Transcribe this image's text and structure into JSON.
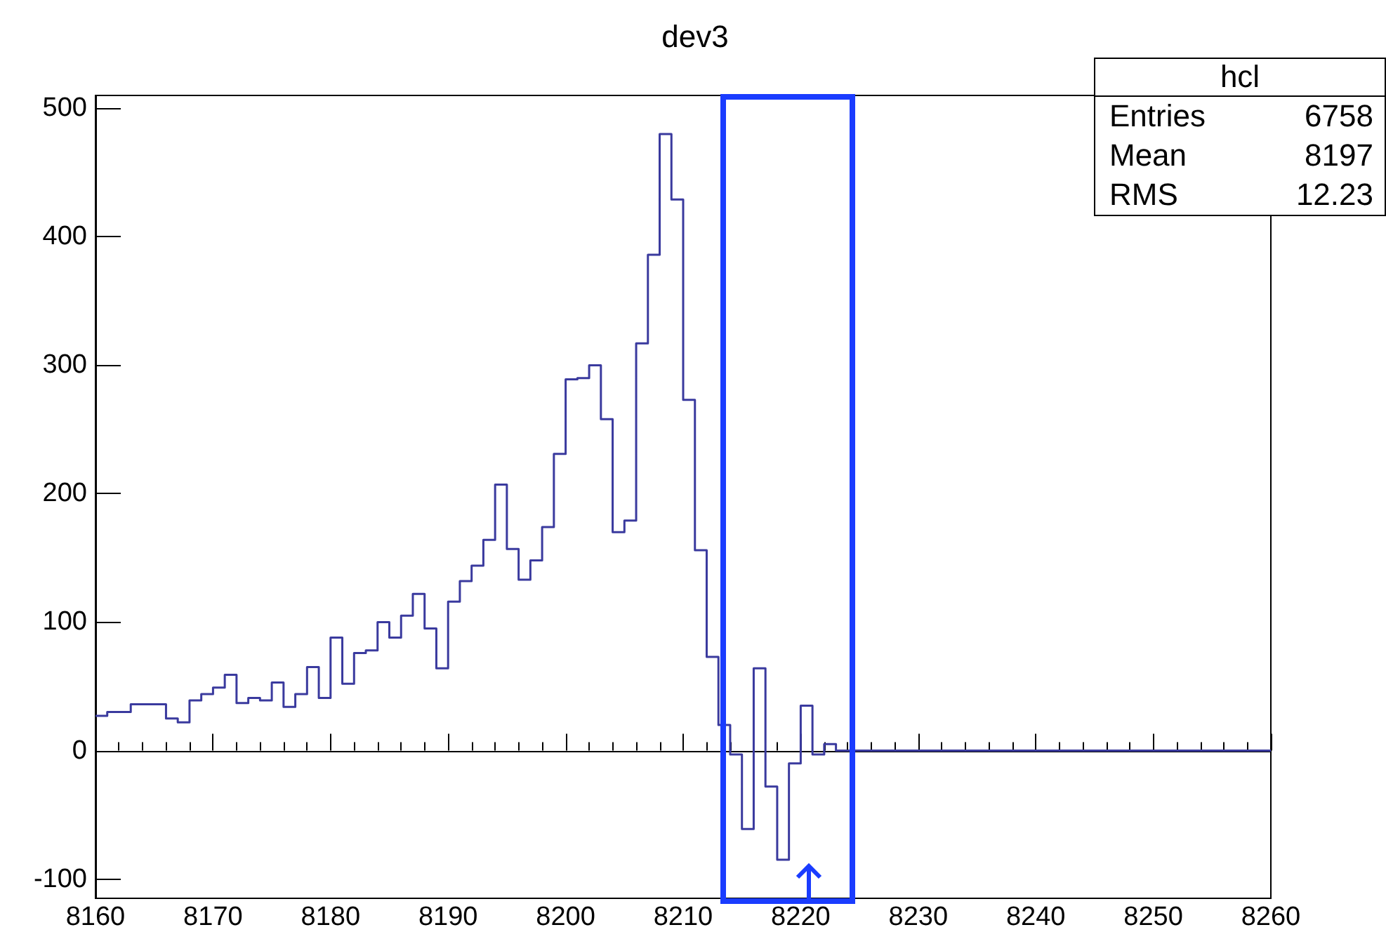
{
  "chart_data": {
    "type": "histogram",
    "title": "dev3",
    "bins": [
      8160,
      8161,
      8162,
      8163,
      8164,
      8165,
      8166,
      8167,
      8168,
      8169,
      8170,
      8171,
      8172,
      8173,
      8174,
      8175,
      8176,
      8177,
      8178,
      8179,
      8180,
      8181,
      8182,
      8183,
      8184,
      8185,
      8186,
      8187,
      8188,
      8189,
      8190,
      8191,
      8192,
      8193,
      8194,
      8195,
      8196,
      8197,
      8198,
      8199,
      8200,
      8201,
      8202,
      8203,
      8204,
      8205,
      8206,
      8207,
      8208,
      8209,
      8210,
      8211,
      8212,
      8213,
      8214,
      8215,
      8216,
      8217,
      8218,
      8219,
      8220,
      8221,
      8222,
      8223,
      8224,
      8225,
      8226,
      8227,
      8228,
      8229,
      8230,
      8231,
      8232,
      8233,
      8234,
      8235,
      8236,
      8237,
      8238,
      8239,
      8240,
      8241,
      8242,
      8243,
      8244,
      8245,
      8246,
      8247,
      8248,
      8249,
      8250,
      8251,
      8252,
      8253,
      8254,
      8255,
      8256,
      8257,
      8258,
      8259,
      8260
    ],
    "values": [
      27,
      30,
      30,
      36,
      36,
      36,
      25,
      22,
      39,
      44,
      49,
      59,
      37,
      41,
      39,
      53,
      34,
      44,
      65,
      41,
      88,
      52,
      76,
      78,
      100,
      88,
      105,
      122,
      95,
      64,
      116,
      132,
      144,
      164,
      207,
      157,
      133,
      148,
      174,
      231,
      289,
      290,
      300,
      258,
      170,
      179,
      317,
      386,
      480,
      429,
      273,
      156,
      73,
      20,
      -3,
      -61,
      64,
      -28,
      -85,
      -10,
      35,
      -3,
      5,
      0,
      0,
      0,
      0,
      0,
      0,
      0,
      0,
      0,
      0,
      0,
      0,
      0,
      0,
      0,
      0,
      0,
      0,
      0,
      0,
      0,
      0,
      0,
      0,
      0,
      0,
      0,
      0,
      0,
      0,
      0,
      0,
      0,
      0,
      0,
      0,
      0
    ],
    "color": "#3a3a9e",
    "xlim": [
      8160,
      8260
    ],
    "xticks": [
      8160,
      8170,
      8180,
      8190,
      8200,
      8210,
      8220,
      8230,
      8240,
      8250,
      8260
    ],
    "ylim": [
      -115,
      510
    ],
    "yticks": [
      -100,
      0,
      100,
      200,
      300,
      400,
      500
    ],
    "annotations": [
      "hcl",
      "Entries",
      "6758",
      "Mean",
      "8197",
      "RMS",
      "12.23"
    ]
  }
}
